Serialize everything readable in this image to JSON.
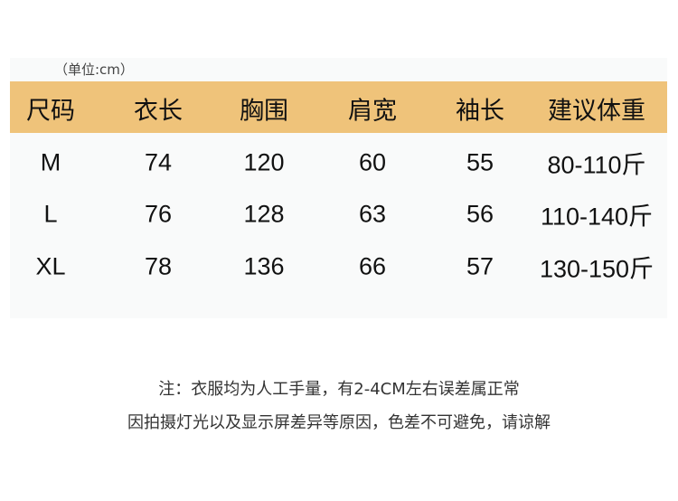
{
  "unit_label": "（单位:cm）",
  "header_color": "#efc37a",
  "columns": [
    "尺码",
    "衣长",
    "胸围",
    "肩宽",
    "袖长",
    "建议体重"
  ],
  "rows": [
    [
      "M",
      "74",
      "120",
      "60",
      "55",
      "80-110斤"
    ],
    [
      "L",
      "76",
      "128",
      "63",
      "56",
      "110-140斤"
    ],
    [
      "XL",
      "78",
      "136",
      "66",
      "57",
      "130-150斤"
    ]
  ],
  "notes": [
    "注：衣服均为人工手量，有2-4CM左右误差属正常",
    "因拍摄灯光以及显示屏差异等原因，色差不可避免，请谅解"
  ]
}
